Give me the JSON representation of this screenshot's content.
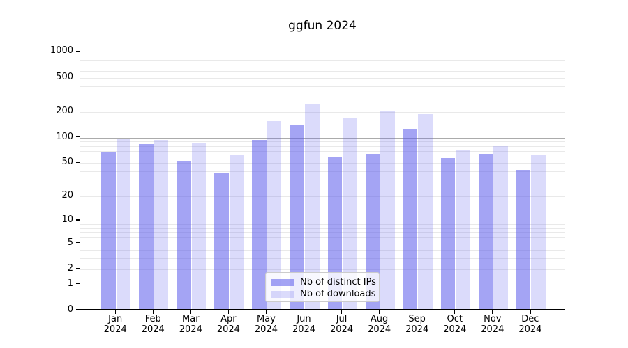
{
  "title": "ggfun 2024",
  "legend": {
    "items": [
      {
        "label": "Nb of distinct IPs",
        "color": "rgba(90,90,235,0.55)"
      },
      {
        "label": "Nb of downloads",
        "color": "rgba(90,90,235,0.22)"
      }
    ]
  },
  "axes": {
    "y_tick_labels": [
      "1000",
      "500",
      "200",
      "100",
      "50",
      "20",
      "10",
      "5",
      "2",
      "1",
      "0"
    ],
    "x_year_line": "2024"
  },
  "chart_data": {
    "type": "bar",
    "title": "ggfun 2024",
    "yscale": "log1p (log-like axis with 0 baseline)",
    "grid": "horizontal: major gray lines at 1,10,100,1000; light minor lines at 2-9 per decade",
    "legend_position": "lower center",
    "categories": [
      "Jan 2024",
      "Feb 2024",
      "Mar 2024",
      "Apr 2024",
      "May 2024",
      "Jun 2024",
      "Jul 2024",
      "Aug 2024",
      "Sep 2024",
      "Oct 2024",
      "Nov 2024",
      "Dec 2024"
    ],
    "series": [
      {
        "name": "Nb of distinct IPs",
        "color": "rgba(90,90,235,0.55)",
        "values": [
          65,
          81,
          51,
          37,
          91,
          135,
          58,
          62,
          122,
          55,
          62,
          40
        ]
      },
      {
        "name": "Nb of downloads",
        "color": "rgba(90,90,235,0.22)",
        "values": [
          94,
          90,
          84,
          61,
          150,
          235,
          163,
          198,
          180,
          68,
          77,
          61
        ]
      }
    ],
    "yticks": [
      0,
      1,
      2,
      5,
      10,
      20,
      50,
      100,
      200,
      500,
      1000
    ],
    "ylim": [
      0,
      1280
    ],
    "xlabel": "",
    "ylabel": ""
  }
}
